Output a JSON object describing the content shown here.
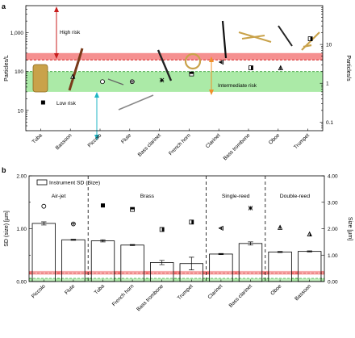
{
  "chart_data": [
    {
      "panel": "a",
      "type": "scatter",
      "ylabel": "Particles/L",
      "y2label": "Particles/s",
      "yscale": "log",
      "ylim": [
        3,
        5000
      ],
      "y2lim": [
        0.06,
        100
      ],
      "yticks": [
        "10",
        "100",
        "1,000"
      ],
      "y2ticks": [
        "0.1",
        "1",
        "10"
      ],
      "categories": [
        "Tuba",
        "Bassoon",
        "Piccolo",
        "Flute",
        "Bass clarinet",
        "French horn",
        "Clarinet",
        "Bass trombone",
        "Oboe",
        "Trumpet"
      ],
      "values": [
        16,
        75,
        55,
        55,
        60,
        87,
        175,
        125,
        125,
        700
      ],
      "markers": [
        "filled-square",
        "half-triangle",
        "open-circle",
        "crossed-circle",
        "crossed-x",
        "half-square",
        "crossed-triangle-left",
        "half-square-right",
        "crossed-triangle-up",
        "half-square-top"
      ],
      "zones": [
        {
          "name": "High risk",
          "label": "High risk",
          "from": 200,
          "to": 300,
          "color": "#f26b6b"
        },
        {
          "name": "Intermediate risk",
          "label": "Intermediate risk",
          "from": 30,
          "to": 100,
          "color": "#8fe38a"
        }
      ],
      "reference_lines": [
        {
          "value": 200,
          "color": "#d62020",
          "style": "dashed"
        },
        {
          "value": 100,
          "color": "#2e9e2e",
          "style": "dashed"
        }
      ],
      "annotations": [
        "High risk",
        "Intermediate risk",
        "Low risk"
      ],
      "grid": false
    },
    {
      "panel": "b",
      "type": "bar",
      "legend": "Instrument SD (Size)",
      "legend_position": "top-left",
      "ylabel": "SD (size) [µm]",
      "y2label": "Size [µm]",
      "ylim": [
        0,
        2
      ],
      "y2lim": [
        0,
        4
      ],
      "yticks": [
        "0.00",
        "1.00",
        "2.00"
      ],
      "y2ticks": [
        "0.00",
        "1.00",
        "2.00",
        "3.00",
        "4.00"
      ],
      "groups": [
        "Air-jet",
        "Brass",
        "Single-reed",
        "Double-reed"
      ],
      "categories": [
        "Piccolo",
        "Flute",
        "Tuba",
        "French horn",
        "Bass trombone",
        "Trumpet",
        "Clarinet",
        "Bass clarinet",
        "Oboe",
        "Bassoon"
      ],
      "values": [
        1.1,
        0.79,
        0.77,
        0.69,
        0.36,
        0.34,
        0.52,
        0.72,
        0.56,
        0.57
      ],
      "errors": [
        0.03,
        0.01,
        0.02,
        0.01,
        0.04,
        0.12,
        0.01,
        0.03,
        0.01,
        0.01
      ],
      "size_values": [
        2.85,
        2.18,
        2.88,
        2.73,
        1.97,
        2.25,
        2.02,
        2.78,
        2.05,
        1.8
      ],
      "markers": [
        "open-circle",
        "crossed-circle",
        "filled-square",
        "half-square",
        "half-square-right",
        "half-square-top",
        "crossed-triangle-left",
        "crossed-x",
        "crossed-triangle-up",
        "half-triangle"
      ],
      "zones": [
        {
          "name": "red-band",
          "from": 0.13,
          "to": 0.2,
          "color": "#f26b6b"
        },
        {
          "name": "green-band",
          "from": 0.0,
          "to": 0.06,
          "color": "#8fe38a"
        }
      ],
      "reference_lines": [
        {
          "value": 0.16,
          "color": "#d62020",
          "style": "dashed"
        },
        {
          "value": 0.06,
          "color": "#2e9e2e",
          "style": "dashed"
        }
      ],
      "grid": false
    }
  ],
  "panels": {
    "a": "a",
    "b": "b"
  }
}
